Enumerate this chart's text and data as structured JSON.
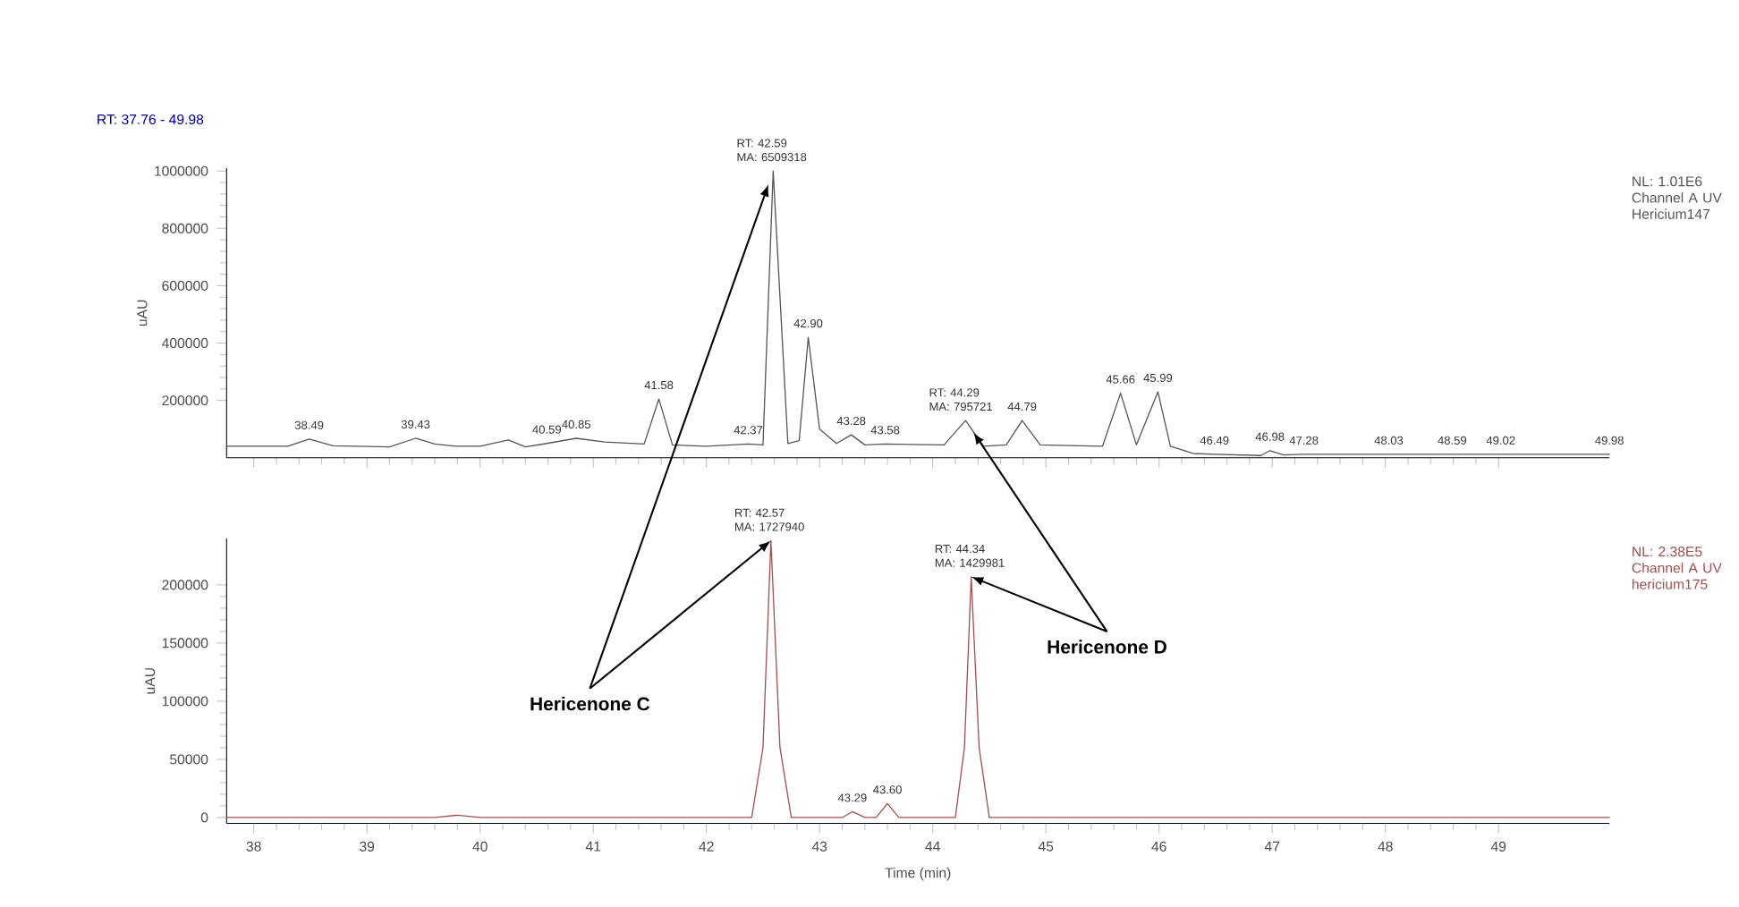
{
  "chart_data": [
    {
      "type": "line",
      "title": "RT: 37.76 - 49.98",
      "ylabel": "uAU",
      "color": "#555555",
      "xlim": [
        37.76,
        49.98
      ],
      "ylim": [
        0,
        1010000
      ],
      "xticks": [
        38,
        39,
        40,
        41,
        42,
        43,
        44,
        45,
        46,
        47,
        48,
        49
      ],
      "yticks": [
        200000,
        400000,
        600000,
        800000,
        1000000
      ],
      "tick_labels": "y",
      "x": [
        37.76,
        38.3,
        38.49,
        38.7,
        39.2,
        39.43,
        39.6,
        39.8,
        40.0,
        40.25,
        40.4,
        40.59,
        40.85,
        41.1,
        41.45,
        41.58,
        41.7,
        42.0,
        42.37,
        42.5,
        42.59,
        42.72,
        42.82,
        42.9,
        43.0,
        43.15,
        43.28,
        43.4,
        43.58,
        44.1,
        44.29,
        44.45,
        44.65,
        44.79,
        44.95,
        45.5,
        45.66,
        45.8,
        45.99,
        46.1,
        46.3,
        46.49,
        46.9,
        46.98,
        47.1,
        47.28,
        48.03,
        48.59,
        49.02,
        49.98
      ],
      "values": [
        40000,
        40000,
        65000,
        42000,
        38000,
        68000,
        48000,
        40000,
        40000,
        62000,
        38000,
        50000,
        68000,
        55000,
        48000,
        205000,
        45000,
        40000,
        48000,
        45000,
        1000000,
        50000,
        60000,
        420000,
        100000,
        50000,
        80000,
        45000,
        48000,
        45000,
        130000,
        40000,
        45000,
        130000,
        45000,
        40000,
        225000,
        45000,
        230000,
        40000,
        15000,
        12000,
        8000,
        25000,
        10000,
        12000,
        12000,
        12000,
        12000,
        12000
      ],
      "annotations": [
        {
          "text": "38.49",
          "x": 38.49,
          "y": 65000
        },
        {
          "text": "39.43",
          "x": 39.43,
          "y": 68000
        },
        {
          "text": "40.59",
          "x": 40.59,
          "y": 50000
        },
        {
          "text": "40.85",
          "x": 40.85,
          "y": 68000
        },
        {
          "text": "41.58",
          "x": 41.58,
          "y": 205000
        },
        {
          "text": "42.37",
          "x": 42.37,
          "y": 48000
        },
        {
          "text": "RT: 42.59 MA: 6509318",
          "x": 42.59,
          "y": 1000000
        },
        {
          "text": "42.90",
          "x": 42.9,
          "y": 420000
        },
        {
          "text": "43.28",
          "x": 43.28,
          "y": 80000
        },
        {
          "text": "43.58",
          "x": 43.58,
          "y": 48000
        },
        {
          "text": "RT: 44.29 MA: 795721",
          "x": 44.29,
          "y": 130000
        },
        {
          "text": "44.79",
          "x": 44.79,
          "y": 130000
        },
        {
          "text": "45.66",
          "x": 45.66,
          "y": 225000
        },
        {
          "text": "45.99",
          "x": 45.99,
          "y": 230000
        },
        {
          "text": "46.49",
          "x": 46.49,
          "y": 12000
        },
        {
          "text": "46.98",
          "x": 46.98,
          "y": 25000
        },
        {
          "text": "47.28",
          "x": 47.28,
          "y": 12000
        },
        {
          "text": "48.03",
          "x": 48.03,
          "y": 12000
        },
        {
          "text": "48.59",
          "x": 48.59,
          "y": 12000
        },
        {
          "text": "49.02",
          "x": 49.02,
          "y": 12000
        },
        {
          "text": "49.98",
          "x": 49.98,
          "y": 12000
        },
        "NL: 1.01E6 Channel A UV Hericium147"
      ]
    },
    {
      "type": "line",
      "xlabel": "Time (min)",
      "ylabel": "uAU",
      "color": "#a05050",
      "xlim": [
        37.76,
        49.98
      ],
      "ylim": [
        -5000,
        240000
      ],
      "xticks": [
        38,
        39,
        40,
        41,
        42,
        43,
        44,
        45,
        46,
        47,
        48,
        49
      ],
      "yticks": [
        0,
        50000,
        100000,
        150000,
        200000
      ],
      "x": [
        37.76,
        39.6,
        39.8,
        40.0,
        42.4,
        42.5,
        42.57,
        42.65,
        42.75,
        43.2,
        43.29,
        43.4,
        43.5,
        43.6,
        43.7,
        44.2,
        44.28,
        44.34,
        44.41,
        44.5,
        49.98
      ],
      "values": [
        0,
        0,
        2000,
        0,
        0,
        60000,
        238000,
        60000,
        0,
        0,
        5000,
        0,
        0,
        12000,
        0,
        0,
        60000,
        207000,
        60000,
        0,
        0
      ],
      "annotations": [
        {
          "text": "RT: 42.57 MA: 1727940",
          "x": 42.57,
          "y": 238000
        },
        {
          "text": "43.29",
          "x": 43.29,
          "y": 5000
        },
        {
          "text": "43.60",
          "x": 43.6,
          "y": 12000
        },
        {
          "text": "RT: 44.34 MA: 1429981",
          "x": 44.34,
          "y": 207000
        },
        {
          "text": "Hericenone C",
          "x": 42.57,
          "y": 238000
        },
        {
          "text": "Hericenone D",
          "x": 44.34,
          "y": 207000
        },
        "NL: 2.38E5 Channel A UV hericium175"
      ]
    }
  ]
}
